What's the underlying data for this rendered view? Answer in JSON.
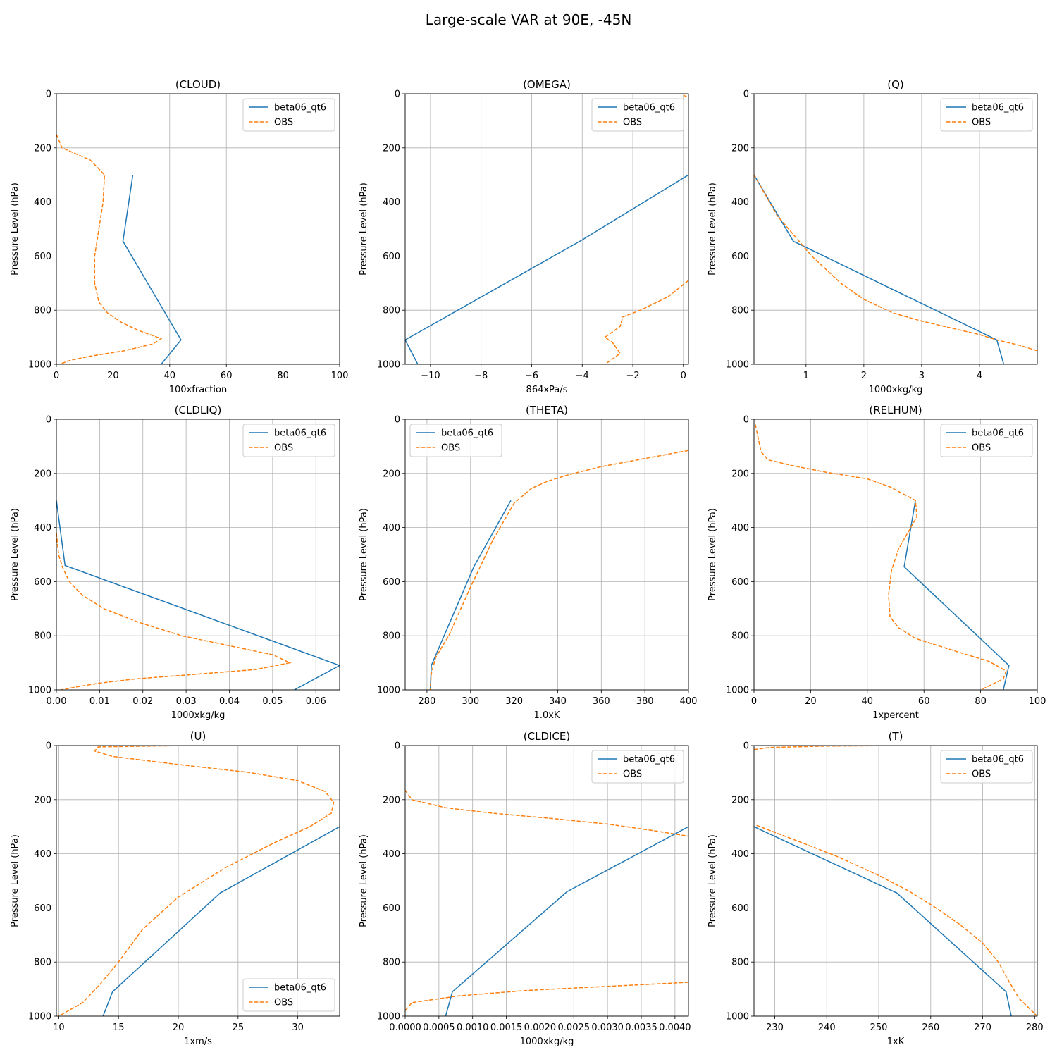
{
  "figure": {
    "title": "Large-scale VAR at 90E, -45N"
  },
  "style": {
    "model_color": "#1f77b4",
    "obs_color": "#ff7f0e",
    "grid_color": "#b0b0b0"
  },
  "chart_data": [
    {
      "type": "line",
      "title": "(CLOUD)",
      "xlabel": "100xfraction",
      "ylabel": "Pressure Level (hPa)",
      "xlim": [
        0,
        100
      ],
      "ylim": [
        1000,
        0
      ],
      "y_inverted": true,
      "grid": true,
      "legend": "upper right",
      "xticks": [
        "0",
        "20",
        "40",
        "60",
        "80",
        "100"
      ],
      "xtick_values": [
        0,
        20,
        40,
        60,
        80,
        100
      ],
      "yticks": [
        "0",
        "200",
        "400",
        "600",
        "800",
        "1000"
      ],
      "ytick_values": [
        0,
        200,
        400,
        600,
        800,
        1000
      ],
      "series": [
        {
          "name": "beta06_qt6",
          "style": "solid",
          "x": [
            27,
            23.5,
            44,
            37
          ],
          "y": [
            300,
            545,
            910,
            1000
          ]
        },
        {
          "name": "OBS",
          "style": "dashed",
          "x": [
            0,
            2,
            12,
            17,
            16.5,
            15,
            13.5,
            13.5,
            15,
            18,
            23,
            29,
            37,
            34,
            24,
            12,
            5,
            1
          ],
          "y": [
            150,
            200,
            245,
            300,
            400,
            500,
            600,
            700,
            770,
            810,
            845,
            875,
            905,
            925,
            950,
            970,
            985,
            1000
          ]
        }
      ]
    },
    {
      "type": "line",
      "title": "(OMEGA)",
      "xlabel": "864xPa/s",
      "ylabel": "Pressure Level (hPa)",
      "xlim": [
        -11,
        0.2
      ],
      "ylim": [
        1000,
        0
      ],
      "y_inverted": true,
      "grid": true,
      "legend": "upper right",
      "xticks": [
        "−10",
        "−8",
        "−6",
        "−4",
        "−2",
        "0"
      ],
      "xtick_values": [
        -10,
        -8,
        -6,
        -4,
        -2,
        0
      ],
      "yticks": [
        "0",
        "200",
        "400",
        "600",
        "800",
        "1000"
      ],
      "ytick_values": [
        0,
        200,
        400,
        600,
        800,
        1000
      ],
      "series": [
        {
          "name": "beta06_qt6",
          "style": "solid",
          "x": [
            0.2,
            -4,
            -11,
            -10.5
          ],
          "y": [
            300,
            540,
            910,
            1000
          ]
        },
        {
          "name": "OBS",
          "style": "dashed",
          "x": [
            0.2,
            -0.6,
            -1.7,
            -2.4,
            -2.5,
            -3.1,
            -2.8,
            -2.5,
            -3.1
          ],
          "y": [
            690,
            750,
            800,
            825,
            860,
            900,
            920,
            960,
            1000
          ]
        },
        {
          "name": "OBS",
          "style": "dashed",
          "legend": false,
          "x": [
            0,
            0.2
          ],
          "y": [
            5,
            15
          ]
        }
      ]
    },
    {
      "type": "line",
      "title": "(Q)",
      "xlabel": "1000xkg/kg",
      "ylabel": "Pressure Level (hPa)",
      "xlim": [
        0.1,
        5.0
      ],
      "ylim": [
        1000,
        0
      ],
      "y_inverted": true,
      "grid": true,
      "legend": "upper right",
      "xticks": [
        "1",
        "2",
        "3",
        "4"
      ],
      "xtick_values": [
        1,
        2,
        3,
        4
      ],
      "yticks": [
        "0",
        "200",
        "400",
        "600",
        "800",
        "1000"
      ],
      "ytick_values": [
        0,
        200,
        400,
        600,
        800,
        1000
      ],
      "series": [
        {
          "name": "beta06_qt6",
          "style": "solid",
          "x": [
            0.1,
            0.78,
            4.3,
            4.42
          ],
          "y": [
            300,
            545,
            910,
            1000
          ]
        },
        {
          "name": "OBS",
          "style": "dashed",
          "x": [
            0.1,
            0.5,
            1.1,
            1.6,
            2.0,
            2.5,
            3.0,
            3.5,
            4.0,
            4.3,
            4.7,
            5.0
          ],
          "y": [
            300,
            450,
            600,
            700,
            760,
            810,
            840,
            865,
            890,
            910,
            930,
            950
          ]
        }
      ]
    },
    {
      "type": "line",
      "title": "(CLDLIQ)",
      "xlabel": "1000xkg/kg",
      "ylabel": "Pressure Level (hPa)",
      "xlim": [
        0,
        0.0655
      ],
      "ylim": [
        1000,
        0
      ],
      "y_inverted": true,
      "grid": true,
      "legend": "upper right",
      "xticks": [
        "0.00",
        "0.01",
        "0.02",
        "0.03",
        "0.04",
        "0.05",
        "0.06"
      ],
      "xtick_values": [
        0,
        0.01,
        0.02,
        0.03,
        0.04,
        0.05,
        0.06
      ],
      "yticks": [
        "0",
        "200",
        "400",
        "600",
        "800",
        "1000"
      ],
      "ytick_values": [
        0,
        200,
        400,
        600,
        800,
        1000
      ],
      "series": [
        {
          "name": "beta06_qt6",
          "style": "solid",
          "x": [
            0,
            0.002,
            0.0655,
            0.055
          ],
          "y": [
            300,
            540,
            910,
            1000
          ]
        },
        {
          "name": "OBS",
          "style": "dashed",
          "x": [
            0,
            0.0005,
            0.0015,
            0.003,
            0.006,
            0.011,
            0.019,
            0.029,
            0.041,
            0.05,
            0.054,
            0.046,
            0.03,
            0.018,
            0.01,
            0.005,
            0.001
          ],
          "y": [
            420,
            500,
            550,
            600,
            650,
            700,
            750,
            800,
            840,
            870,
            900,
            925,
            945,
            960,
            975,
            988,
            1000
          ]
        }
      ]
    },
    {
      "type": "line",
      "title": "(THETA)",
      "xlabel": "1.0xK",
      "ylabel": "Pressure Level (hPa)",
      "xlim": [
        270,
        400
      ],
      "ylim": [
        1000,
        0
      ],
      "y_inverted": true,
      "grid": true,
      "legend": "upper left",
      "xticks": [
        "280",
        "300",
        "320",
        "340",
        "360",
        "380",
        "400"
      ],
      "xtick_values": [
        280,
        300,
        320,
        340,
        360,
        380,
        400
      ],
      "yticks": [
        "0",
        "200",
        "400",
        "600",
        "800",
        "1000"
      ],
      "ytick_values": [
        0,
        200,
        400,
        600,
        800,
        1000
      ],
      "series": [
        {
          "name": "beta06_qt6",
          "style": "solid",
          "x": [
            318.5,
            301.5,
            282,
            281.5
          ],
          "y": [
            300,
            545,
            910,
            1000
          ]
        },
        {
          "name": "OBS",
          "style": "dashed",
          "x": [
            400,
            380,
            360,
            345,
            335,
            328,
            320,
            310,
            300,
            290,
            284,
            282,
            281.5
          ],
          "y": [
            115,
            145,
            175,
            205,
            230,
            255,
            310,
            450,
            620,
            800,
            880,
            940,
            1000
          ]
        }
      ]
    },
    {
      "type": "line",
      "title": "(RELHUM)",
      "xlabel": "1xpercent",
      "ylabel": "Pressure Level (hPa)",
      "xlim": [
        0,
        100
      ],
      "ylim": [
        1000,
        0
      ],
      "y_inverted": true,
      "grid": true,
      "legend": "upper right",
      "xticks": [
        "0",
        "20",
        "40",
        "60",
        "80",
        "100"
      ],
      "xtick_values": [
        0,
        20,
        40,
        60,
        80,
        100
      ],
      "yticks": [
        "0",
        "200",
        "400",
        "600",
        "800",
        "1000"
      ],
      "ytick_values": [
        0,
        200,
        400,
        600,
        800,
        1000
      ],
      "series": [
        {
          "name": "beta06_qt6",
          "style": "solid",
          "x": [
            57,
            53,
            90,
            88
          ],
          "y": [
            300,
            545,
            910,
            1000
          ]
        },
        {
          "name": "OBS",
          "style": "dashed",
          "x": [
            0.5,
            2.5,
            5,
            13,
            25,
            40,
            48,
            57,
            57.5,
            51,
            48.5,
            47.5,
            48,
            51,
            57,
            69,
            83,
            89,
            88,
            80
          ],
          "y": [
            20,
            120,
            150,
            170,
            195,
            220,
            250,
            300,
            360,
            480,
            560,
            650,
            730,
            770,
            810,
            850,
            895,
            930,
            960,
            1000
          ]
        }
      ]
    },
    {
      "type": "line",
      "title": "(U)",
      "xlabel": "1xm/s",
      "ylabel": "Pressure Level (hPa)",
      "xlim": [
        9.8,
        33.5
      ],
      "ylim": [
        1000,
        0
      ],
      "y_inverted": true,
      "grid": true,
      "legend": "lower right",
      "xticks": [
        "10",
        "15",
        "20",
        "25",
        "30"
      ],
      "xtick_values": [
        10,
        15,
        20,
        25,
        30
      ],
      "yticks": [
        "0",
        "200",
        "400",
        "600",
        "800",
        "1000"
      ],
      "ytick_values": [
        0,
        200,
        400,
        600,
        800,
        1000
      ],
      "series": [
        {
          "name": "beta06_qt6",
          "style": "solid",
          "x": [
            33.5,
            23.5,
            14.5,
            13.7
          ],
          "y": [
            300,
            545,
            910,
            1000
          ]
        },
        {
          "name": "OBS",
          "style": "dashed",
          "x": [
            20.5,
            13.3,
            13.0,
            14.5,
            20,
            26,
            30,
            32.3,
            33,
            32.8,
            31,
            28,
            24,
            20,
            17,
            15,
            13.5,
            12,
            10
          ],
          "y": [
            0,
            5,
            20,
            40,
            70,
            100,
            130,
            170,
            210,
            250,
            300,
            360,
            450,
            560,
            680,
            800,
            880,
            950,
            1000
          ]
        }
      ]
    },
    {
      "type": "line",
      "title": "(CLDICE)",
      "xlabel": "1000xkg/kg",
      "ylabel": "Pressure Level (hPa)",
      "xlim": [
        0,
        0.0042
      ],
      "ylim": [
        1000,
        0
      ],
      "y_inverted": true,
      "grid": true,
      "legend": "upper right",
      "xticks": [
        "0.0000",
        "0.0005",
        "0.0010",
        "0.0015",
        "0.0020",
        "0.0025",
        "0.0030",
        "0.0035",
        "0.0040"
      ],
      "xtick_values": [
        0,
        0.0005,
        0.001,
        0.0015,
        0.002,
        0.0025,
        0.003,
        0.0035,
        0.004
      ],
      "yticks": [
        "0",
        "200",
        "400",
        "600",
        "800",
        "1000"
      ],
      "ytick_values": [
        0,
        200,
        400,
        600,
        800,
        1000
      ],
      "series": [
        {
          "name": "beta06_qt6",
          "style": "solid",
          "x": [
            0.0042,
            0.0024,
            0.0007,
            0.0006
          ],
          "y": [
            300,
            540,
            910,
            1000
          ]
        },
        {
          "name": "OBS",
          "style": "dashed",
          "x": [
            0,
            0.0001,
            0.0006,
            0.0013,
            0.0022,
            0.003,
            0.0037,
            0.0042
          ],
          "y": [
            165,
            200,
            230,
            250,
            270,
            290,
            315,
            335
          ]
        },
        {
          "name": "OBS",
          "style": "dashed",
          "legend": false,
          "x": [
            0.0042,
            0.003,
            0.0018,
            0.0008,
            0.0001,
            0
          ],
          "y": [
            875,
            890,
            905,
            925,
            950,
            980
          ]
        }
      ]
    },
    {
      "type": "line",
      "title": "(T)",
      "xlabel": "1xK",
      "ylabel": "Pressure Level (hPa)",
      "xlim": [
        226,
        280.5
      ],
      "ylim": [
        1000,
        0
      ],
      "y_inverted": true,
      "grid": true,
      "legend": "upper right",
      "xticks": [
        "230",
        "240",
        "250",
        "260",
        "270",
        "280"
      ],
      "xtick_values": [
        230,
        240,
        250,
        260,
        270,
        280
      ],
      "yticks": [
        "0",
        "200",
        "400",
        "600",
        "800",
        "1000"
      ],
      "ytick_values": [
        0,
        200,
        400,
        600,
        800,
        1000
      ],
      "series": [
        {
          "name": "beta06_qt6",
          "style": "solid",
          "x": [
            226,
            253.5,
            274.5,
            275.5
          ],
          "y": [
            300,
            545,
            910,
            1000
          ]
        },
        {
          "name": "OBS",
          "style": "dashed",
          "x": [
            226.5,
            234,
            242,
            250,
            256,
            261,
            265.5,
            270,
            273,
            275,
            277,
            280.5
          ],
          "y": [
            295,
            350,
            410,
            480,
            540,
            600,
            660,
            730,
            800,
            870,
            935,
            1000
          ]
        },
        {
          "name": "OBS",
          "style": "dashed",
          "legend": false,
          "x": [
            226,
            229,
            240,
            255,
            256
          ],
          "y": [
            15,
            7,
            2,
            0,
            0
          ]
        }
      ]
    }
  ]
}
